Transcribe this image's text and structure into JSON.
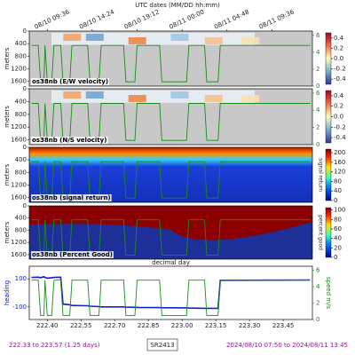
{
  "chart_data": [
    {
      "type": "heatmap",
      "title": "os38nb (E/W velocity)",
      "ylabel": "meters",
      "colormap": "RdYlBu_r",
      "xlim": [
        222.32,
        223.58
      ],
      "ylim": [
        0,
        1750
      ],
      "y_inverted": true,
      "yticks": [
        0,
        400,
        800,
        1200,
        1600
      ],
      "y2lim": [
        0,
        6.5
      ],
      "y2ticks": [
        0,
        2,
        4,
        6
      ],
      "clim": [
        -0.5,
        0.5
      ],
      "cticks": [
        0.4,
        0.2,
        {
          "value": 0,
          "label": "0.0"
        },
        -0.2,
        -0.4
      ],
      "x2label": "UTC dates (MM/DD hh:mm)",
      "x2ticks": [
        {
          "value": 222.4,
          "label": "08/10 09:36"
        },
        {
          "value": 222.6,
          "label": "08/10 14:24"
        },
        {
          "value": 222.8,
          "label": "08/10 19:12"
        },
        {
          "value": 223.0,
          "label": "08/11 00:00"
        },
        {
          "value": 223.2,
          "label": "08/11 04:48"
        },
        {
          "value": 223.4,
          "label": "08/11 09:36"
        }
      ]
    },
    {
      "type": "heatmap",
      "title": "os38nb (N/S velocity)",
      "ylabel": "meters",
      "colormap": "RdYlBu_r",
      "xlim": [
        222.32,
        223.58
      ],
      "ylim": [
        0,
        1750
      ],
      "y_inverted": true,
      "yticks": [
        0,
        400,
        800,
        1200,
        1600
      ],
      "y2lim": [
        0,
        6.5
      ],
      "y2ticks": [
        0,
        2,
        4,
        6
      ],
      "clim": [
        -0.5,
        0.5
      ],
      "cticks": [
        0.4,
        0.2,
        {
          "value": 0,
          "label": "0.0"
        },
        -0.2,
        -0.4
      ]
    },
    {
      "type": "heatmap",
      "title": "os38nb (signal return)",
      "ylabel": "meters",
      "colormap": "jet",
      "xlim": [
        222.32,
        223.58
      ],
      "ylim": [
        0,
        1750
      ],
      "y_inverted": true,
      "yticks": [
        0,
        400,
        800,
        1200,
        1600
      ],
      "y2lim": [
        0,
        6.5
      ],
      "clim": [
        0,
        215
      ],
      "cticks": [
        0,
        40,
        80,
        120,
        160,
        200
      ],
      "clabel": "signal return"
    },
    {
      "type": "heatmap",
      "title": "os38nb (Percent Good)",
      "ylabel": "meters",
      "colormap": "jet",
      "xlim": [
        222.32,
        223.58
      ],
      "ylim": [
        0,
        1750
      ],
      "y_inverted": true,
      "yticks": [
        0,
        400,
        800,
        1200,
        1600
      ],
      "y2lim": [
        0,
        6.5
      ],
      "clim": [
        0,
        105
      ],
      "cticks": [
        0,
        20,
        40,
        60,
        80,
        100
      ],
      "clabel": "percent good",
      "xlabel": "decimal day"
    },
    {
      "type": "line",
      "ylabel": "heading",
      "y2label": "speed m/s",
      "xlim": [
        222.32,
        223.58
      ],
      "ylim": [
        -190,
        190
      ],
      "yticks": [
        -100,
        100
      ],
      "y2lim": [
        0,
        6.5
      ],
      "y2ticks": [
        0,
        2,
        4,
        6
      ],
      "xticks": [
        {
          "value": 222.4,
          "label": "222.40"
        },
        222.55,
        {
          "value": 222.7,
          "label": "222.70"
        },
        222.85,
        {
          "value": 223.0,
          "label": "223.00"
        },
        223.15,
        {
          "value": 223.3,
          "label": "223.30"
        },
        223.45
      ],
      "x": [
        222.33,
        222.36,
        222.37,
        222.385,
        222.39,
        222.4,
        222.42,
        222.43,
        222.46,
        222.47,
        222.5,
        222.51,
        222.58,
        222.59,
        222.63,
        222.64,
        222.74,
        222.75,
        222.79,
        222.8,
        222.9,
        222.91,
        223.02,
        223.03,
        223.1,
        223.11,
        223.16,
        223.17,
        223.57
      ],
      "series": [
        {
          "name": "heading",
          "color": "#1020d0",
          "axis": "y",
          "values": [
            110,
            112,
            108,
            115,
            110,
            105,
            108,
            110,
            112,
            -80,
            -85,
            -90,
            -92,
            -95,
            -98,
            -100,
            -100,
            -102,
            -103,
            -104,
            -105,
            -106,
            -107,
            -108,
            -110,
            -110,
            -110,
            90,
            92
          ]
        },
        {
          "name": "speed",
          "color": "#1a8a1a",
          "axis": "y2",
          "values": [
            4.8,
            4.8,
            0.5,
            0.5,
            4.8,
            0.5,
            0.5,
            4.8,
            4.8,
            0.5,
            0.5,
            4.8,
            4.8,
            0.5,
            0.5,
            4.8,
            4.8,
            0.5,
            0.5,
            4.8,
            4.8,
            0.5,
            0.5,
            4.8,
            4.8,
            0.5,
            0.5,
            4.8,
            4.8
          ]
        }
      ]
    }
  ],
  "footer": {
    "range": "222.33 to 223.57 (1.25 days)",
    "cruise": "SR2413",
    "dates": "2024/08/10 07:50 to 2024/08/11 13:45"
  }
}
